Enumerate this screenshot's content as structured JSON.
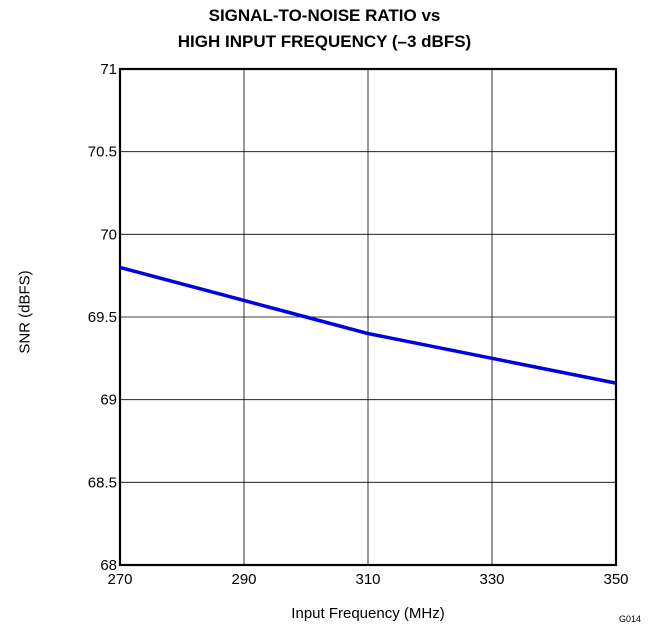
{
  "chart_data": {
    "type": "line",
    "title_line1": "SIGNAL-TO-NOISE RATIO vs",
    "title_line2": "HIGH INPUT FREQUENCY (–3 dBFS)",
    "xlabel": "Input Frequency (MHz)",
    "ylabel": "SNR (dBFS)",
    "figure_id": "G014",
    "xlim": [
      270,
      350
    ],
    "ylim": [
      68,
      71
    ],
    "xticks": [
      270,
      290,
      310,
      330,
      350
    ],
    "yticks": [
      68,
      68.5,
      69,
      69.5,
      70,
      70.5,
      71
    ],
    "grid": true,
    "line_color": "#0000e0",
    "series": [
      {
        "x": [
          270,
          290,
          300,
          310,
          330,
          350
        ],
        "y": [
          69.8,
          69.6,
          69.5,
          69.4,
          69.25,
          69.1
        ]
      }
    ]
  }
}
